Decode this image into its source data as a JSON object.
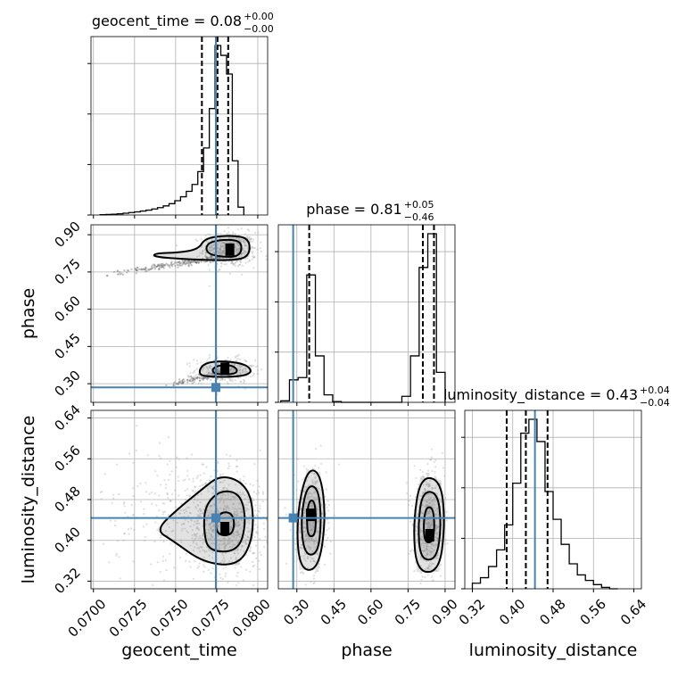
{
  "chart_data": {
    "type": "corner",
    "parameters": [
      "geocent_time",
      "phase",
      "luminosity_distance"
    ],
    "axis_labels": {
      "geocent_time": "geocent_time",
      "phase": "phase",
      "luminosity_distance": "luminosity_distance"
    },
    "titles": [
      {
        "param": "geocent_time",
        "main": "geocent_time = 0.08",
        "plus": "+0.00",
        "minus": "−0.00"
      },
      {
        "param": "phase",
        "main": "phase = 0.81",
        "plus": "+0.05",
        "minus": "−0.46"
      },
      {
        "param": "luminosity_distance",
        "main": "luminosity_distance = 0.43",
        "plus": "+0.04",
        "minus": "−0.04"
      }
    ],
    "ranges": {
      "geocent_time": [
        0.06985,
        0.0806
      ],
      "phase": [
        0.225,
        0.94
      ],
      "luminosity_distance": [
        0.305,
        0.655
      ]
    },
    "ticks": {
      "geocent_time": {
        "values": [
          0.07,
          0.0725,
          0.075,
          0.0775,
          0.08
        ],
        "labels": [
          "0.0700",
          "0.0725",
          "0.0750",
          "0.0775",
          "0.0800"
        ]
      },
      "phase": {
        "values": [
          0.3,
          0.45,
          0.6,
          0.75,
          0.9
        ],
        "labels": [
          "0.30",
          "0.45",
          "0.60",
          "0.75",
          "0.90"
        ]
      },
      "luminosity_distance": {
        "values": [
          0.32,
          0.4,
          0.48,
          0.56,
          0.64
        ],
        "labels": [
          "0.32",
          "0.40",
          "0.48",
          "0.56",
          "0.64"
        ]
      }
    },
    "truths": {
      "geocent_time": 0.07745,
      "phase": 0.285,
      "luminosity_distance": 0.444
    },
    "quantiles": {
      "geocent_time": [
        0.0766,
        0.07755,
        0.0782
      ],
      "phase": [
        0.35,
        0.81,
        0.855
      ],
      "luminosity_distance": [
        0.388,
        0.426,
        0.469
      ]
    },
    "histograms": {
      "geocent_time": {
        "edges": [
          0.0704,
          0.07075,
          0.0711,
          0.07145,
          0.0718,
          0.07215,
          0.0725,
          0.07285,
          0.0732,
          0.07355,
          0.0739,
          0.07425,
          0.0746,
          0.07495,
          0.0753,
          0.07565,
          0.076,
          0.07635,
          0.0767,
          0.07705,
          0.0774,
          0.07775,
          0.0781,
          0.07845,
          0.0788,
          0.07915
        ],
        "counts": [
          0.3,
          0.5,
          0.8,
          1.2,
          1.8,
          2.5,
          3.2,
          4.0,
          4.9,
          6.1,
          7.5,
          9.2,
          11.5,
          14.5,
          18.5,
          24.0,
          31.0,
          44.0,
          68.0,
          108.0,
          172.0,
          162.0,
          143.0,
          55.0,
          8.0
        ]
      },
      "phase": {
        "edges": [
          0.235,
          0.27,
          0.305,
          0.34,
          0.375,
          0.41,
          0.445,
          0.48,
          0.515,
          0.55,
          0.585,
          0.62,
          0.655,
          0.69,
          0.725,
          0.76,
          0.795,
          0.83,
          0.865,
          0.9
        ],
        "counts": [
          2,
          30,
          33,
          170,
          62,
          10,
          1,
          0,
          0,
          0,
          0,
          0,
          0,
          0,
          8,
          62,
          180,
          225,
          40
        ]
      },
      "luminosity_distance": {
        "edges": [
          0.32,
          0.336,
          0.352,
          0.368,
          0.384,
          0.4,
          0.416,
          0.432,
          0.448,
          0.464,
          0.48,
          0.496,
          0.512,
          0.528,
          0.544,
          0.56,
          0.576,
          0.592,
          0.608
        ],
        "counts": [
          4,
          8,
          16,
          28,
          46,
          76,
          112,
          122,
          106,
          70,
          50,
          32,
          18,
          10,
          6,
          3,
          1,
          0
        ]
      }
    },
    "panels_2d": [
      {
        "x": "geocent_time",
        "y": "phase",
        "clusters": [
          {
            "cx": 0.0783,
            "cy": 0.84,
            "sx": 0.0008,
            "sy": 0.035,
            "n": 550,
            "dark": [
              0.0783,
              0.84
            ]
          },
          {
            "cx": 0.078,
            "cy": 0.355,
            "sx": 0.0009,
            "sy": 0.025,
            "n": 330,
            "dark": [
              0.078,
              0.36
            ]
          }
        ],
        "tails": [
          {
            "from": [
              0.0708,
              0.74
            ],
            "to": [
              0.0778,
              0.81
            ],
            "n": 220
          },
          {
            "from": [
              0.0745,
              0.29
            ],
            "to": [
              0.0778,
              0.345
            ],
            "n": 120
          }
        ],
        "contours": [
          [
            [
              0.0771,
              0.818
            ],
            [
              0.0784,
              0.808
            ],
            [
              0.079,
              0.823
            ],
            [
              0.079,
              0.872
            ],
            [
              0.0782,
              0.882
            ],
            [
              0.0771,
              0.872
            ],
            [
              0.0768,
              0.845
            ]
          ],
          [
            [
              0.0754,
              0.802
            ],
            [
              0.0784,
              0.795
            ],
            [
              0.0795,
              0.812
            ],
            [
              0.0795,
              0.885
            ],
            [
              0.0784,
              0.898
            ],
            [
              0.0768,
              0.888
            ],
            [
              0.0764,
              0.842
            ],
            [
              0.0752,
              0.828
            ],
            [
              0.0738,
              0.826
            ],
            [
              0.0736,
              0.812
            ]
          ],
          [
            [
              0.0774,
              0.338
            ],
            [
              0.0786,
              0.338
            ],
            [
              0.0788,
              0.358
            ],
            [
              0.0783,
              0.377
            ],
            [
              0.0775,
              0.372
            ],
            [
              0.0772,
              0.355
            ]
          ],
          [
            [
              0.0766,
              0.328
            ],
            [
              0.0788,
              0.327
            ],
            [
              0.0797,
              0.345
            ],
            [
              0.0793,
              0.378
            ],
            [
              0.078,
              0.392
            ],
            [
              0.0768,
              0.385
            ],
            [
              0.0764,
              0.352
            ]
          ]
        ]
      },
      {
        "x": "geocent_time",
        "y": "luminosity_distance",
        "clusters": [
          {
            "cx": 0.078,
            "cy": 0.43,
            "sx": 0.0012,
            "sy": 0.048,
            "n": 600,
            "dark": [
              0.078,
              0.424
            ]
          },
          {
            "cx": 0.0758,
            "cy": 0.46,
            "sx": 0.0028,
            "sy": 0.06,
            "n": 300
          }
        ],
        "tails": [],
        "contours": [
          [
            [
              0.0776,
              0.41
            ],
            [
              0.0784,
              0.41
            ],
            [
              0.0786,
              0.432
            ],
            [
              0.0784,
              0.455
            ],
            [
              0.0777,
              0.455
            ],
            [
              0.0774,
              0.432
            ]
          ],
          [
            [
              0.077,
              0.378
            ],
            [
              0.0788,
              0.378
            ],
            [
              0.0793,
              0.432
            ],
            [
              0.079,
              0.49
            ],
            [
              0.0778,
              0.5
            ],
            [
              0.0768,
              0.47
            ],
            [
              0.0767,
              0.42
            ]
          ],
          [
            [
              0.0767,
              0.356
            ],
            [
              0.0788,
              0.35
            ],
            [
              0.0797,
              0.4
            ],
            [
              0.0797,
              0.478
            ],
            [
              0.079,
              0.516
            ],
            [
              0.0777,
              0.528
            ],
            [
              0.0766,
              0.5
            ],
            [
              0.075,
              0.458
            ],
            [
              0.0738,
              0.42
            ],
            [
              0.0748,
              0.4
            ]
          ]
        ]
      },
      {
        "x": "phase",
        "y": "luminosity_distance",
        "clusters": [
          {
            "cx": 0.355,
            "cy": 0.44,
            "sx": 0.032,
            "sy": 0.05,
            "n": 420,
            "dark": [
              0.355,
              0.45
            ]
          },
          {
            "cx": 0.835,
            "cy": 0.43,
            "sx": 0.03,
            "sy": 0.05,
            "n": 520,
            "dark": [
              0.838,
              0.41
            ]
          }
        ],
        "tails": [],
        "contours": [
          [
            [
              0.345,
              0.408
            ],
            [
              0.372,
              0.408
            ],
            [
              0.378,
              0.44
            ],
            [
              0.372,
              0.478
            ],
            [
              0.348,
              0.478
            ],
            [
              0.34,
              0.44
            ]
          ],
          [
            [
              0.33,
              0.372
            ],
            [
              0.385,
              0.372
            ],
            [
              0.4,
              0.44
            ],
            [
              0.386,
              0.504
            ],
            [
              0.34,
              0.508
            ],
            [
              0.315,
              0.44
            ]
          ],
          [
            [
              0.31,
              0.342
            ],
            [
              0.388,
              0.342
            ],
            [
              0.418,
              0.445
            ],
            [
              0.395,
              0.534
            ],
            [
              0.34,
              0.54
            ],
            [
              0.298,
              0.445
            ]
          ],
          [
            [
              0.818,
              0.396
            ],
            [
              0.85,
              0.396
            ],
            [
              0.858,
              0.43
            ],
            [
              0.85,
              0.465
            ],
            [
              0.822,
              0.465
            ],
            [
              0.812,
              0.43
            ]
          ],
          [
            [
              0.8,
              0.362
            ],
            [
              0.866,
              0.362
            ],
            [
              0.885,
              0.43
            ],
            [
              0.87,
              0.494
            ],
            [
              0.808,
              0.496
            ],
            [
              0.79,
              0.43
            ]
          ],
          [
            [
              0.785,
              0.338
            ],
            [
              0.876,
              0.338
            ],
            [
              0.9,
              0.43
            ],
            [
              0.884,
              0.518
            ],
            [
              0.8,
              0.526
            ],
            [
              0.77,
              0.43
            ]
          ]
        ]
      }
    ],
    "colors": {
      "truth": "#4682b4",
      "hist": "#000000",
      "grid": "#b0b0b0",
      "scatter": "#a0a0a0"
    }
  }
}
